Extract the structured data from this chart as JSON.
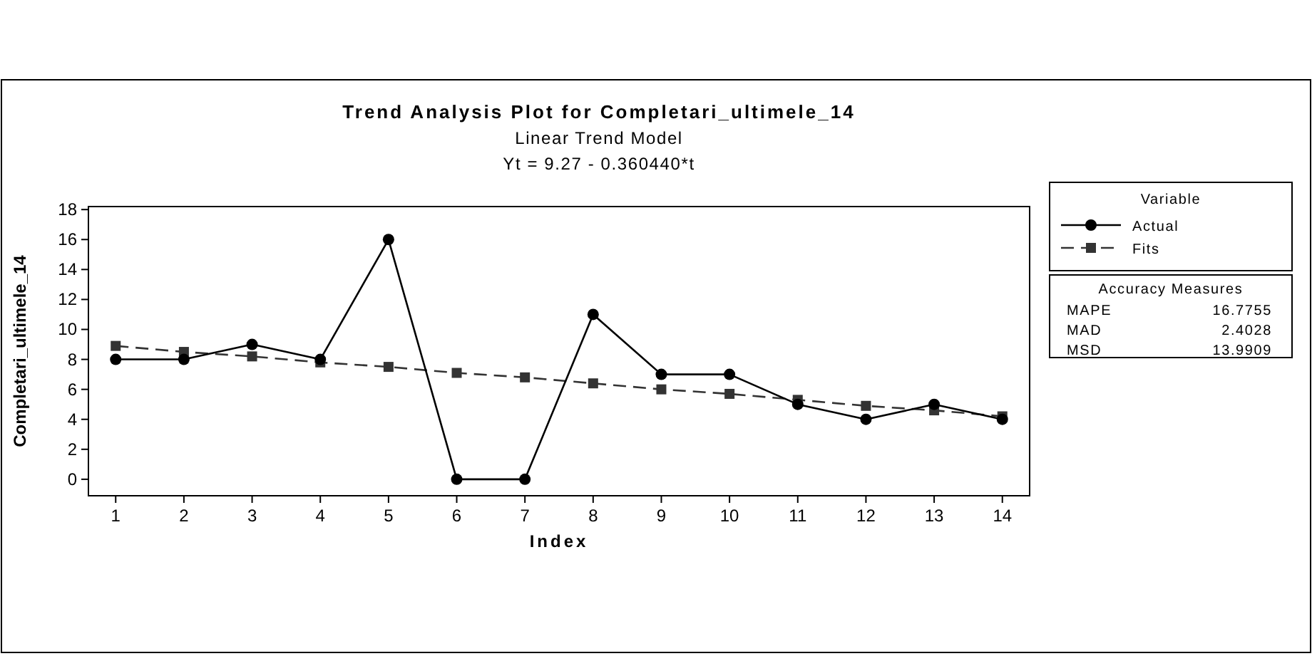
{
  "chart_data": {
    "type": "line",
    "title": "Trend Analysis Plot for Completari_ultimele_14",
    "subtitle": "Linear Trend Model",
    "xlabel": "Index",
    "ylabel": "Completari_ultimele_14",
    "legend_title": "Variable",
    "legend": "top right",
    "grid": false,
    "x": [
      1,
      2,
      3,
      4,
      5,
      6,
      7,
      8,
      9,
      10,
      11,
      12,
      13,
      14
    ],
    "xlim": [
      0.6,
      14.4
    ],
    "xticks": [
      1,
      2,
      3,
      4,
      5,
      6,
      7,
      8,
      9,
      10,
      11,
      12,
      13,
      14
    ],
    "ylim": [
      -1.1,
      18.2
    ],
    "yticks": [
      0,
      2,
      4,
      6,
      8,
      10,
      12,
      14,
      16,
      18
    ],
    "series": [
      {
        "name": "Actual",
        "color": "#000000",
        "marker": "circle",
        "line_style": "solid",
        "values": [
          8,
          8,
          9,
          8,
          16,
          0,
          0,
          11,
          7,
          7,
          5,
          4,
          5,
          4
        ]
      },
      {
        "name": "Fits",
        "color": "#333333",
        "marker": "square",
        "line_style": "dashed",
        "values": [
          8.9,
          8.5,
          8.2,
          7.8,
          7.5,
          7.1,
          6.8,
          6.4,
          6.0,
          5.7,
          5.3,
          4.9,
          4.6,
          4.2
        ]
      }
    ],
    "annotations": [
      "Yt = 9.27 - 0.360440*t",
      "Accuracy Measures",
      "MAPE",
      "16.7755",
      "MAD",
      "2.4028",
      "MSD",
      "13.9909"
    ]
  }
}
